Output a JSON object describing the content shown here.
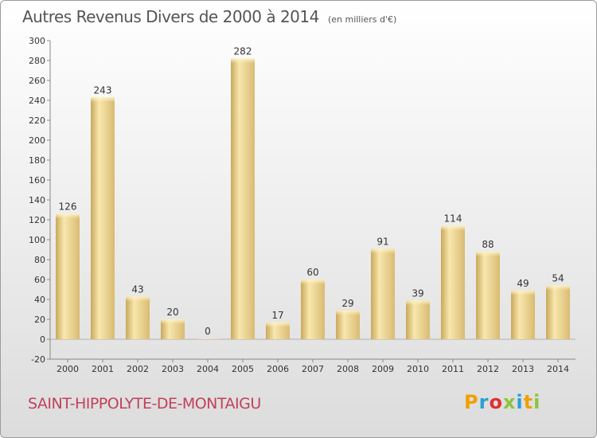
{
  "header": {
    "title": "Autres Revenus Divers de 2000 à 2014",
    "unit_note": "(en milliers d'€)"
  },
  "footer": {
    "commune": "SAINT-HIPPOLYTE-DE-MONTAIGU",
    "logo_letters": [
      "P",
      "r",
      "o",
      "x",
      "i",
      "t",
      "i"
    ],
    "logo_colors": [
      "#f0a000",
      "#2a9fd6",
      "#e03030",
      "#8cc43c",
      "#2a9fd6",
      "#f0a000",
      "#8cc43c"
    ]
  },
  "chart_data": {
    "type": "bar",
    "categories": [
      "2000",
      "2001",
      "2002",
      "2003",
      "2004",
      "2005",
      "2006",
      "2007",
      "2008",
      "2009",
      "2010",
      "2011",
      "2012",
      "2013",
      "2014"
    ],
    "values": [
      126,
      243,
      43,
      20,
      0,
      282,
      17,
      60,
      29,
      91,
      39,
      114,
      88,
      49,
      54
    ],
    "ylim": [
      -20,
      300
    ],
    "yticks": [
      -20,
      0,
      20,
      40,
      60,
      80,
      100,
      120,
      140,
      160,
      180,
      200,
      220,
      240,
      260,
      280,
      300
    ],
    "grid": false,
    "bar_color": "#ddc07a",
    "bar_highlight": "#f8e7ad"
  }
}
